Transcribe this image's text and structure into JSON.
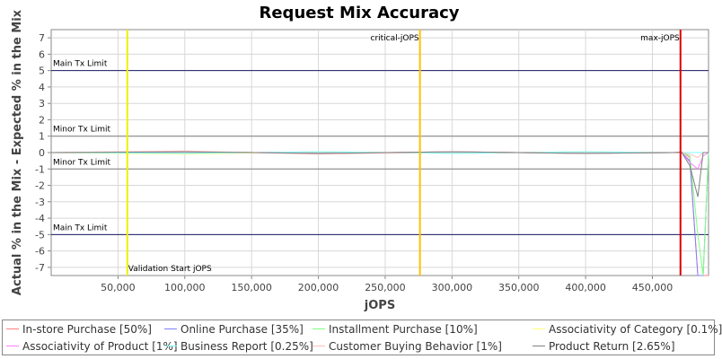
{
  "chart_data": {
    "type": "line",
    "title": "Request Mix Accuracy",
    "xlabel": "jOPS",
    "ylabel": "Actual % in the Mix - Expected % in the Mix",
    "xlim": [
      0,
      492000
    ],
    "ylim": [
      -7.5,
      7.5
    ],
    "xticks": [
      50000,
      100000,
      150000,
      200000,
      250000,
      300000,
      350000,
      400000,
      450000
    ],
    "xtick_labels": [
      "50,000",
      "100,000",
      "150,000",
      "200,000",
      "250,000",
      "300,000",
      "350,000",
      "400,000",
      "450,000"
    ],
    "yticks": [
      7,
      6,
      5,
      4,
      3,
      2,
      1,
      0,
      -1,
      -2,
      -3,
      -4,
      -5,
      -6,
      -7
    ],
    "grid": true,
    "legend_position": "bottom",
    "limit_lines": [
      {
        "label": "Main Tx Limit",
        "y": 5,
        "color": "#1a1a66"
      },
      {
        "label": "Minor Tx Limit",
        "y": 1,
        "color": "#808080"
      },
      {
        "label": "Minor Tx Limit",
        "y": -1,
        "color": "#808080"
      },
      {
        "label": "Main Tx Limit",
        "y": -5,
        "color": "#1a1a66"
      }
    ],
    "markers": [
      {
        "label": "Validation Start jOPS",
        "x": 57000,
        "color": "#f0f000"
      },
      {
        "label": "critical-jOPS",
        "x": 276000,
        "color": "#ffc000"
      },
      {
        "label": "max-jOPS",
        "x": 471000,
        "color": "#dd0000"
      }
    ],
    "series": [
      {
        "name": "In-store Purchase [50%]",
        "color": "#ff8080",
        "x": [
          0,
          100000,
          200000,
          300000,
          400000,
          465000,
          472000,
          478000,
          484000,
          488000,
          492000
        ],
        "y": [
          0,
          0.05,
          -0.05,
          0.05,
          -0.05,
          0,
          0.05,
          -0.3,
          -7.5,
          -7.5,
          -7.5
        ]
      },
      {
        "name": "Online Purchase [35%]",
        "color": "#8080ff",
        "x": [
          0,
          100000,
          200000,
          300000,
          400000,
          465000,
          472000,
          478000,
          484000,
          488000,
          492000
        ],
        "y": [
          0,
          -0.05,
          0.05,
          -0.05,
          0.05,
          0,
          0,
          -0.5,
          -7.5,
          -7.5,
          0
        ]
      },
      {
        "name": "Installment Purchase [10%]",
        "color": "#80ff80",
        "x": [
          0,
          100000,
          200000,
          300000,
          400000,
          465000,
          472000,
          478000,
          484000,
          488000,
          492000
        ],
        "y": [
          0,
          0.05,
          -0.05,
          0.05,
          -0.05,
          0,
          0,
          -0.2,
          -5.0,
          -7.5,
          0
        ]
      },
      {
        "name": "Associativity of Category [0.1%]",
        "color": "#ffff80",
        "x": [
          0,
          100000,
          200000,
          300000,
          400000,
          465000,
          472000,
          478000,
          484000,
          488000,
          492000
        ],
        "y": [
          0,
          -0.1,
          0.05,
          -0.05,
          0.05,
          0,
          0,
          0,
          0,
          0,
          0
        ]
      },
      {
        "name": "Associativity of Product [1%]",
        "color": "#ff80ff",
        "x": [
          0,
          100000,
          200000,
          300000,
          400000,
          465000,
          472000,
          478000,
          484000,
          488000,
          492000
        ],
        "y": [
          0,
          0.05,
          -0.05,
          0.05,
          -0.05,
          0,
          0,
          -0.6,
          -1.0,
          -0.2,
          0
        ]
      },
      {
        "name": "Business Report [0.25%]",
        "color": "#80ffff",
        "x": [
          0,
          100000,
          200000,
          300000,
          400000,
          465000,
          472000,
          478000,
          484000,
          488000,
          492000
        ],
        "y": [
          0,
          -0.05,
          0.05,
          -0.05,
          0.05,
          0,
          0,
          0,
          0,
          0,
          0
        ]
      },
      {
        "name": "Customer Buying Behavior [1%]",
        "color": "#ffc0c0",
        "x": [
          0,
          100000,
          200000,
          300000,
          400000,
          465000,
          472000,
          478000,
          484000,
          488000,
          492000
        ],
        "y": [
          0,
          0.1,
          -0.1,
          0.05,
          -0.05,
          0,
          0,
          -0.1,
          -0.3,
          0,
          0
        ]
      },
      {
        "name": "Product Return [2.65%]",
        "color": "#808080",
        "x": [
          0,
          100000,
          200000,
          300000,
          400000,
          465000,
          472000,
          478000,
          484000,
          488000,
          492000
        ],
        "y": [
          0,
          0.05,
          -0.05,
          0.05,
          -0.05,
          0,
          0,
          -0.8,
          -2.7,
          0,
          0
        ]
      }
    ]
  }
}
